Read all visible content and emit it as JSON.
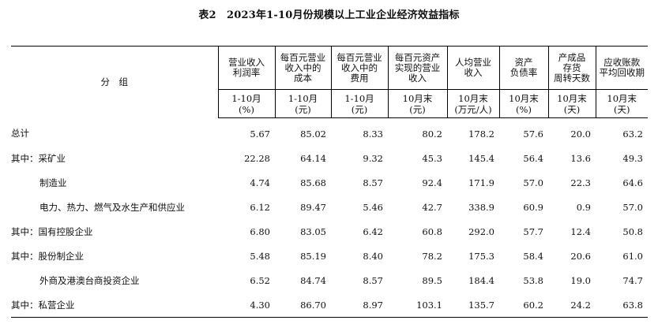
{
  "title": "表2　2023年1-10月份规模以上工业企业经济效益指标",
  "stub_header": "分　组",
  "columns": [
    {
      "header": "营业收入\n利润率",
      "unit": "1-10月\n(%)"
    },
    {
      "header": "每百元营业\n收入中的\n成本",
      "unit": "1-10月\n(元)"
    },
    {
      "header": "每百元营业\n收入中的\n费用",
      "unit": "1-10月\n(元)"
    },
    {
      "header": "每百元资产\n实现的营业\n收入",
      "unit": "10月末\n(元)"
    },
    {
      "header": "人均营业\n收入",
      "unit": "10月末\n(万元/人)"
    },
    {
      "header": "资产\n负债率",
      "unit": "10月末\n(%)"
    },
    {
      "header": "产成品\n存货\n周转天数",
      "unit": "10月末\n(天)"
    },
    {
      "header": "应收账款\n平均回收期",
      "unit": "10月末\n(天)"
    }
  ],
  "rows": [
    {
      "label": "总计",
      "indent": false,
      "values": [
        "5.67",
        "85.02",
        "8.33",
        "80.2",
        "178.2",
        "57.6",
        "20.0",
        "63.2"
      ]
    },
    {
      "label": "其中：采矿业",
      "indent": false,
      "values": [
        "22.28",
        "64.14",
        "9.32",
        "45.3",
        "145.4",
        "56.4",
        "13.6",
        "49.3"
      ]
    },
    {
      "label": "制造业",
      "indent": true,
      "values": [
        "4.74",
        "85.68",
        "8.57",
        "92.4",
        "171.9",
        "57.0",
        "22.3",
        "64.6"
      ]
    },
    {
      "label": "电力、热力、燃气及水生产和供应业",
      "indent": true,
      "values": [
        "6.12",
        "89.47",
        "5.46",
        "42.7",
        "338.9",
        "60.9",
        "0.9",
        "57.0"
      ]
    },
    {
      "label": "其中：国有控股企业",
      "indent": false,
      "values": [
        "6.80",
        "83.05",
        "6.42",
        "60.8",
        "292.0",
        "57.7",
        "12.4",
        "50.8"
      ]
    },
    {
      "label": "其中：股份制企业",
      "indent": false,
      "values": [
        "5.48",
        "85.19",
        "8.40",
        "78.2",
        "175.3",
        "58.4",
        "20.6",
        "61.0"
      ]
    },
    {
      "label": "外商及港澳台商投资企业",
      "indent": true,
      "values": [
        "6.52",
        "84.74",
        "8.57",
        "89.5",
        "184.4",
        "53.8",
        "19.0",
        "74.7"
      ]
    },
    {
      "label": "其中：私营企业",
      "indent": false,
      "values": [
        "4.30",
        "86.70",
        "8.97",
        "103.1",
        "135.7",
        "60.2",
        "24.2",
        "63.8"
      ]
    }
  ]
}
